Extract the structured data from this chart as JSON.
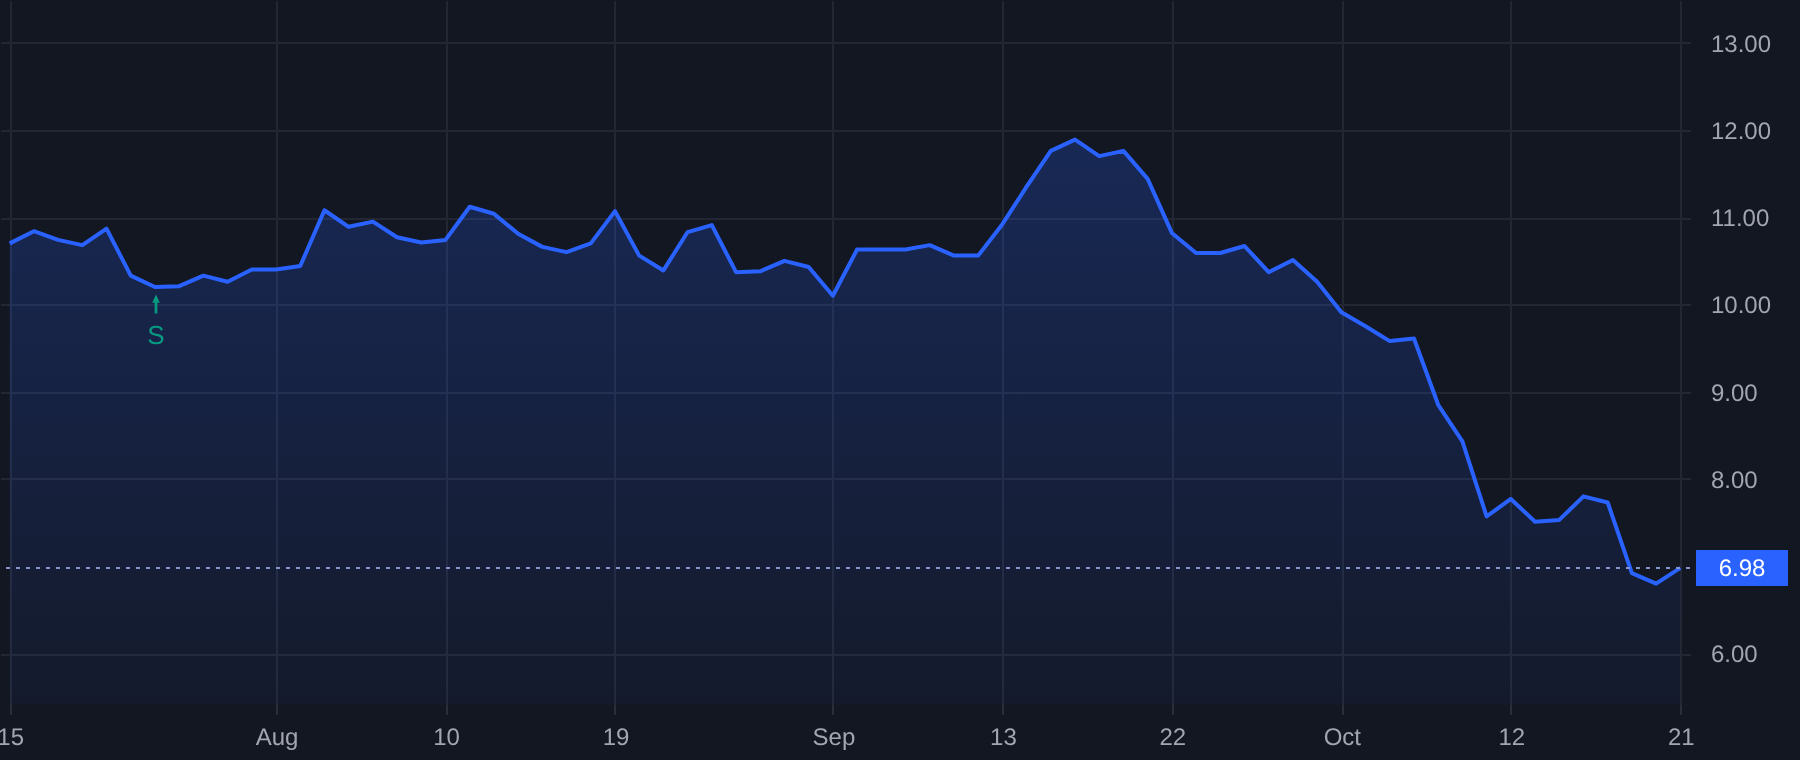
{
  "chart_data": {
    "type": "area",
    "categories": [
      "15",
      null,
      null,
      null,
      null,
      null,
      null,
      null,
      null,
      null,
      null,
      "Aug",
      null,
      null,
      null,
      null,
      null,
      null,
      "10",
      null,
      null,
      null,
      null,
      null,
      null,
      "19",
      null,
      null,
      null,
      null,
      null,
      null,
      null,
      null,
      "Sep",
      null,
      null,
      null,
      null,
      null,
      null,
      "13",
      null,
      null,
      null,
      null,
      null,
      null,
      "22",
      null,
      null,
      null,
      null,
      null,
      null,
      "Oct",
      null,
      null,
      null,
      null,
      null,
      null,
      "12",
      null,
      null,
      null,
      null,
      null,
      null,
      "21"
    ],
    "series": [
      {
        "color": "#2962ff",
        "values": [
          10.7,
          10.84,
          10.74,
          10.68,
          10.87,
          10.33,
          10.2,
          10.21,
          10.33,
          10.26,
          10.4,
          10.4,
          10.44,
          11.08,
          10.89,
          10.95,
          10.77,
          10.71,
          10.74,
          11.12,
          11.04,
          10.81,
          10.66,
          10.6,
          10.7,
          11.07,
          10.56,
          10.39,
          10.83,
          10.91,
          10.37,
          10.38,
          10.5,
          10.43,
          10.1,
          10.63,
          10.63,
          10.63,
          10.68,
          10.56,
          10.56,
          10.92,
          11.35,
          11.76,
          11.89,
          11.7,
          11.76,
          11.44,
          10.82,
          10.59,
          10.59,
          10.67,
          10.37,
          10.51,
          10.26,
          9.91,
          9.75,
          9.58,
          9.61,
          8.85,
          8.43,
          7.57,
          7.77,
          7.51,
          7.53,
          7.8,
          7.73,
          6.92,
          6.8,
          6.98
        ]
      }
    ],
    "ylim": [
      5.42,
      13.49
    ],
    "yticks": [
      {
        "value": 6,
        "label": "6.00"
      },
      {
        "value": 8,
        "label": "8.00"
      },
      {
        "value": 9,
        "label": "9.00"
      },
      {
        "value": 10,
        "label": "10.00"
      },
      {
        "value": 11,
        "label": "11.00"
      },
      {
        "value": 12,
        "label": "12.00"
      },
      {
        "value": 13,
        "label": "13.00"
      }
    ],
    "ref_lines": [
      {
        "axis": "y",
        "value": 6.98,
        "label": "6.98",
        "color": "#8494cc",
        "line_style": "dotted"
      }
    ],
    "annotations": [
      "S"
    ],
    "grid": true
  }
}
